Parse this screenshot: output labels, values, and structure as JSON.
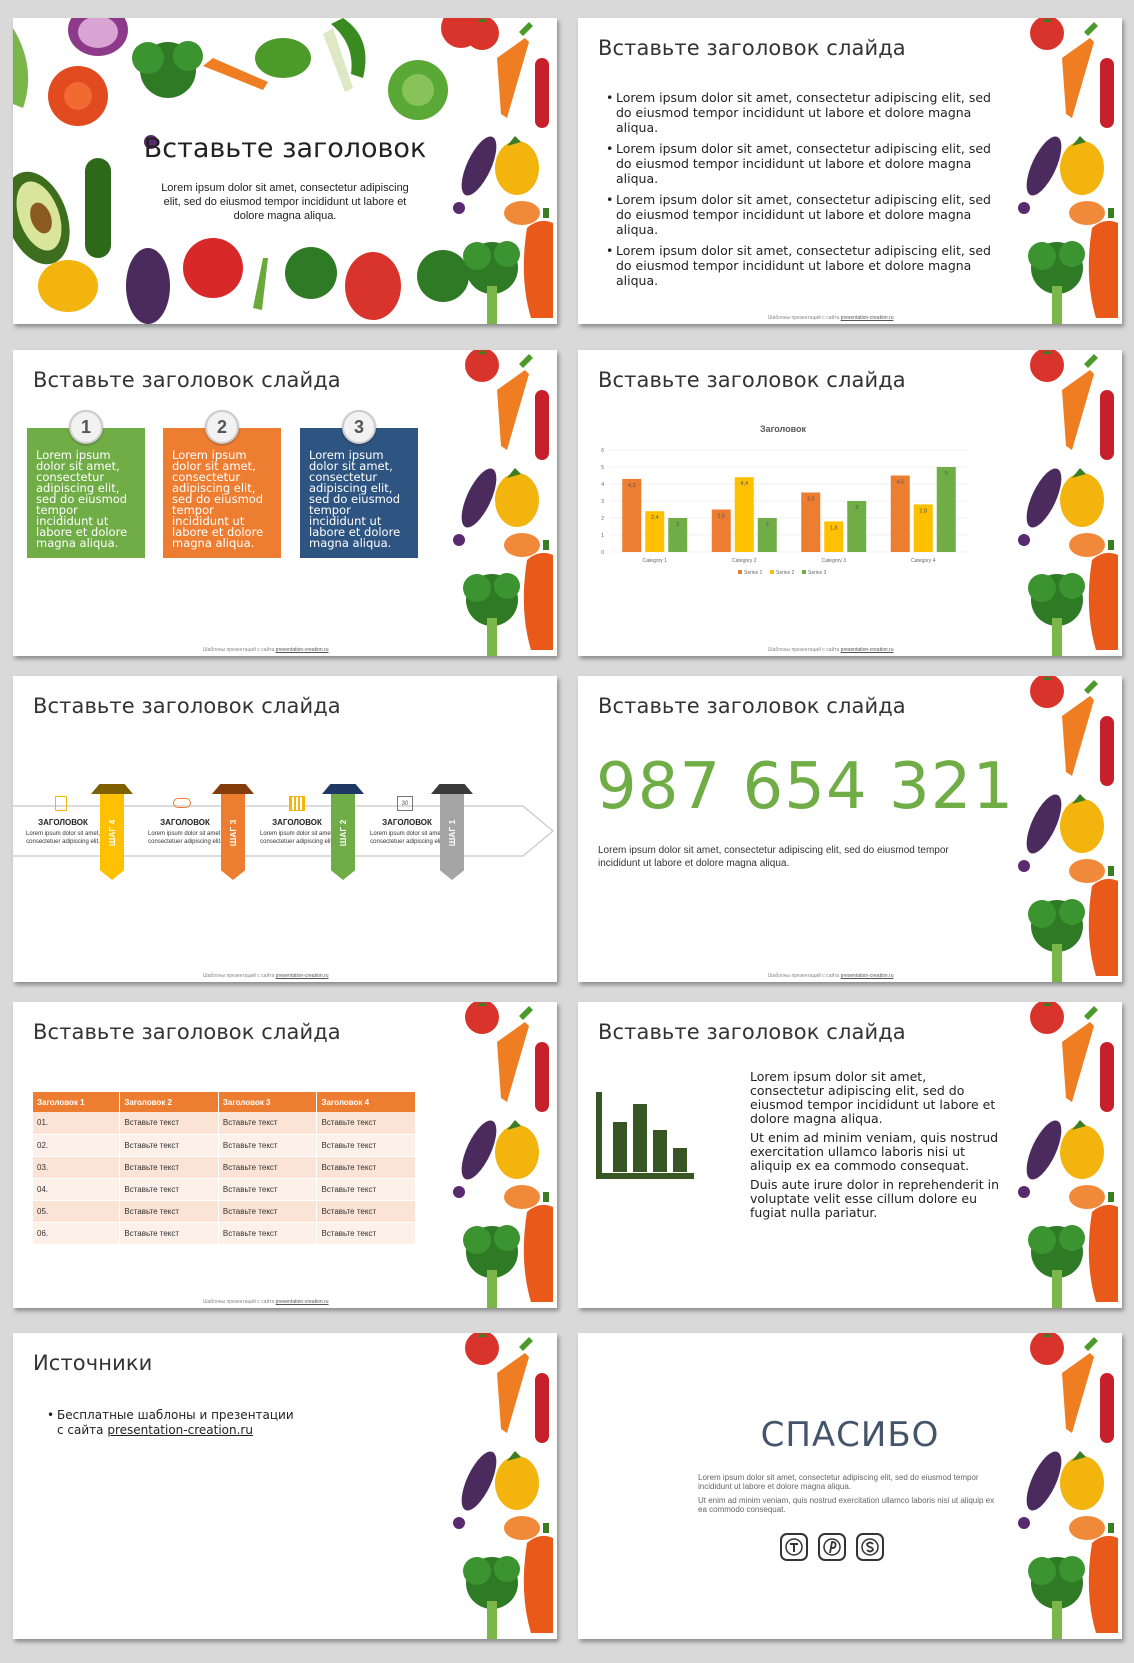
{
  "slide1": {
    "title": "Вставьте заголовок",
    "text": "Lorem ipsum dolor sit amet, consectetur adipiscing elit, sed do eiusmod tempor incididunt ut labore et dolore magna aliqua."
  },
  "common": {
    "slide_title": "Вставьте заголовок слайда",
    "footer_prefix": "Шаблоны презентаций с сайта ",
    "footer_link": "presentation-creation.ru",
    "lorem_bullet": "Lorem ipsum dolor sit amet, consectetur adipiscing elit, sed do eiusmod tempor incididunt ut labore et dolore magna aliqua."
  },
  "slide2": {
    "bullets": [
      "Lorem ipsum dolor sit amet, consectetur adipiscing elit, sed do eiusmod tempor incididunt ut labore et dolore magna aliqua.",
      "Lorem ipsum dolor sit amet, consectetur adipiscing elit, sed do eiusmod tempor incididunt ut labore et dolore magna aliqua.",
      "Lorem ipsum dolor sit amet, consectetur adipiscing elit, sed do eiusmod tempor incididunt ut labore et dolore magna aliqua.",
      "Lorem ipsum dolor sit amet, consectetur adipiscing elit, sed do eiusmod tempor incididunt ut labore et dolore magna aliqua."
    ]
  },
  "slide3": {
    "boxes": [
      {
        "num": "1",
        "text": "Lorem ipsum dolor sit amet, consectetur adipiscing elit, sed do eiusmod tempor incididunt ut labore et dolore magna aliqua.",
        "color": "#70ad47"
      },
      {
        "num": "2",
        "text": "Lorem ipsum dolor sit amet, consectetur adipiscing elit, sed do eiusmod tempor incididunt ut labore et dolore magna aliqua.",
        "color": "#ed7d31"
      },
      {
        "num": "3",
        "text": "Lorem ipsum dolor sit amet, consectetur adipiscing elit, sed do eiusmod tempor incididunt ut labore et dolore magna aliqua.",
        "color": "#2e5582"
      }
    ]
  },
  "slide4": {
    "chart_data": {
      "type": "bar",
      "title": "Заголовок",
      "categories": [
        "Category 1",
        "Category 2",
        "Category 3",
        "Category 4"
      ],
      "series": [
        {
          "name": "Series 1",
          "values": [
            4.3,
            2.5,
            3.5,
            4.5
          ],
          "color": "#ed7d31"
        },
        {
          "name": "Series 2",
          "values": [
            2.4,
            4.4,
            1.8,
            2.8
          ],
          "color": "#ffc000"
        },
        {
          "name": "Series 3",
          "values": [
            2,
            2,
            3,
            5
          ],
          "color": "#70ad47"
        }
      ],
      "ylim": [
        0,
        6
      ],
      "yticks": [
        "0",
        "1",
        "2",
        "3",
        "4",
        "5",
        "6"
      ],
      "legend": "bottom",
      "grid": true
    }
  },
  "slide5": {
    "steps": [
      {
        "tab": "ШАГ 4",
        "heading": "ЗАГОЛОВОК",
        "text": "Lorem ipsum dolor sit amet, consectetuer adipiscing elit.",
        "color": "#ffc000",
        "icon": "document-icon"
      },
      {
        "tab": "ШАГ 3",
        "heading": "ЗАГОЛОВОК",
        "text": "Lorem ipsum dolor sit amet, consectetuer adipiscing elit.",
        "color": "#ed7d31",
        "icon": "cloud-icon"
      },
      {
        "tab": "ШАГ 2",
        "heading": "ЗАГОЛОВОК",
        "text": "Lorem ipsum dolor sit amet, consectetuer adipiscing elit.",
        "color": "#70ad47",
        "icon": "books-icon"
      },
      {
        "tab": "ШАГ 1",
        "heading": "ЗАГОЛОВОК",
        "text": "Lorem ipsum dolor sit amet, consectetuer adipiscing elit.",
        "color": "#a5a5a5",
        "icon": "calendar-icon"
      }
    ],
    "calendar_day": "30"
  },
  "slide6": {
    "number": "987 654 321",
    "text": "Lorem ipsum dolor sit amet, consectetur adipiscing elit, sed do eiusmod tempor incididunt ut labore et dolore magna aliqua."
  },
  "slide7": {
    "table": {
      "headers": [
        "Заголовок 1",
        "Заголовок 2",
        "Заголовок 3",
        "Заголовок 4"
      ],
      "rows": [
        [
          "01.",
          "Вставьте текст",
          "Вставьте текст",
          "Вставьте текст"
        ],
        [
          "02.",
          "Вставьте текст",
          "Вставьте текст",
          "Вставьте текст"
        ],
        [
          "03.",
          "Вставьте текст",
          "Вставьте текст",
          "Вставьте текст"
        ],
        [
          "04.",
          "Вставьте текст",
          "Вставьте текст",
          "Вставьте текст"
        ],
        [
          "05.",
          "Вставьте текст",
          "Вставьте текст",
          "Вставьте текст"
        ],
        [
          "06.",
          "Вставьте текст",
          "Вставьте текст",
          "Вставьте текст"
        ]
      ]
    }
  },
  "slide8": {
    "paragraphs": [
      "Lorem ipsum dolor sit amet, consectetur adipiscing elit, sed do eiusmod tempor incididunt ut labore et dolore magna aliqua.",
      "Ut enim ad minim veniam, quis nostrud exercitation ullamco laboris nisi ut aliquip ex ea commodo consequat.",
      "Duis aute irure dolor in reprehenderit in voluptate velit esse cillum dolore eu fugiat nulla pariatur."
    ],
    "icon": "bar-chart-icon",
    "icon_color": "#375623"
  },
  "slide9": {
    "title": "Источники",
    "bullet_line1": "Бесплатные шаблоны и презентации",
    "bullet_line2": "с сайта ",
    "link": "presentation-creation.ru"
  },
  "slide10": {
    "title": "СПАСИБО",
    "p1": "Lorem ipsum dolor sit amet, consectetur adipiscing elit, sed do eiusmod tempor incididunt ut labore et dolore magna aliqua.",
    "p2": "Ut enim ad minim veniam, quis nostrud exercitation ullamco laboris nisi ut aliquip ex ea commodo consequat.",
    "icons": [
      "twitter-icon",
      "pinterest-icon",
      "skype-icon"
    ]
  }
}
